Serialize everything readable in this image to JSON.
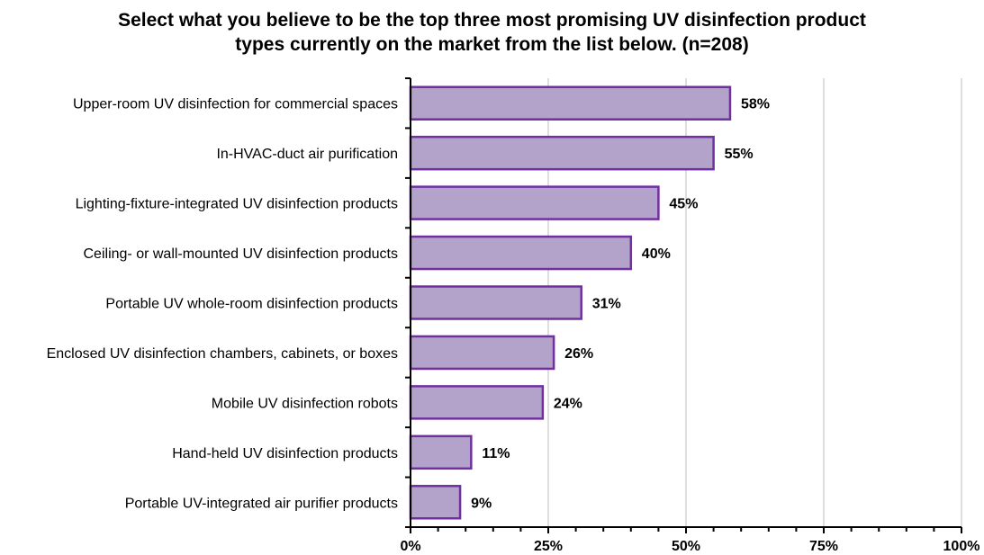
{
  "chart_data": {
    "type": "bar",
    "orientation": "horizontal",
    "title_lines": [
      "Select what you believe to be the top three most promising UV disinfection product",
      "types currently on the market from the list below. (n=208)"
    ],
    "categories": [
      "Upper-room UV disinfection for commercial spaces",
      "In-HVAC-duct air purification",
      "Lighting-fixture-integrated UV disinfection products",
      "Ceiling- or wall-mounted UV disinfection products",
      "Portable UV whole-room disinfection products",
      "Enclosed UV disinfection chambers, cabinets, or boxes",
      "Mobile UV disinfection robots",
      "Hand-held UV disinfection products",
      "Portable UV-integrated air purifier products"
    ],
    "values": [
      58,
      55,
      45,
      40,
      31,
      26,
      24,
      11,
      9
    ],
    "value_labels": [
      "58%",
      "55%",
      "45%",
      "40%",
      "31%",
      "26%",
      "24%",
      "11%",
      "9%"
    ],
    "xlim": [
      0,
      100
    ],
    "x_ticks": [
      0,
      25,
      50,
      75,
      100
    ],
    "x_tick_labels": [
      "0%",
      "25%",
      "50%",
      "75%",
      "100%"
    ],
    "grid": true,
    "legend": "none",
    "bar_fill": "#B3A2C9",
    "bar_stroke": "#7030A0",
    "grid_color": "#C8C8C8",
    "axis_color": "#000000"
  }
}
